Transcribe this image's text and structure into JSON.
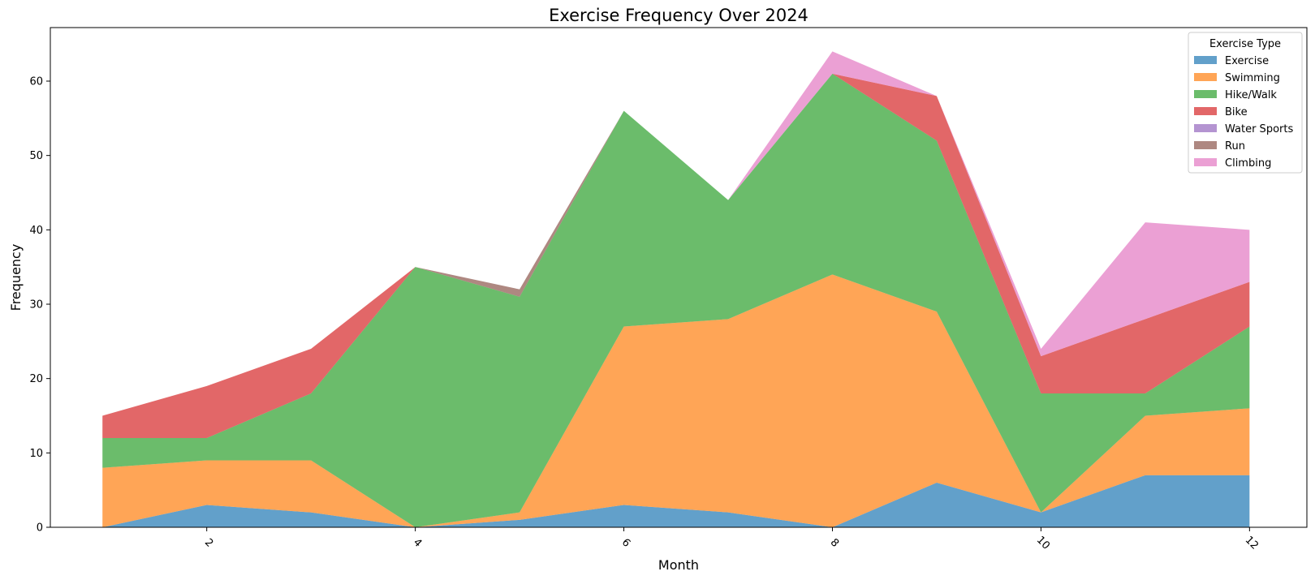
{
  "chart_data": {
    "type": "area",
    "stacked": true,
    "title": "Exercise Frequency Over 2024",
    "xlabel": "Month",
    "ylabel": "Frequency",
    "xlim": [
      0.5,
      12.55
    ],
    "ylim": [
      0,
      67.2
    ],
    "x_ticks": [
      2,
      4,
      6,
      8,
      10,
      12
    ],
    "y_ticks": [
      0,
      10,
      20,
      30,
      40,
      50,
      60
    ],
    "x_tick_rotation": 45,
    "grid": false,
    "legend": {
      "title": "Exercise Type",
      "placement": "top-right"
    },
    "x": [
      1,
      2,
      3,
      4,
      5,
      6,
      7,
      8,
      9,
      10,
      11,
      12
    ],
    "series": [
      {
        "name": "Exercise",
        "color": "#1f77b4",
        "values": [
          0,
          3,
          2,
          0,
          1,
          3,
          2,
          0,
          6,
          2,
          7,
          7
        ]
      },
      {
        "name": "Swimming",
        "color": "#ff7f0e",
        "values": [
          8,
          6,
          7,
          0,
          1,
          24,
          26,
          34,
          23,
          0,
          8,
          9
        ]
      },
      {
        "name": "Hike/Walk",
        "color": "#2ca02c",
        "values": [
          4,
          3,
          9,
          35,
          29,
          29,
          16,
          27,
          23,
          16,
          3,
          11
        ]
      },
      {
        "name": "Bike",
        "color": "#d62728",
        "values": [
          3,
          7,
          6,
          0,
          0,
          0,
          0,
          0,
          6,
          5,
          10,
          6
        ]
      },
      {
        "name": "Water Sports",
        "color": "#9467bd",
        "values": [
          0,
          0,
          0,
          0,
          0,
          0,
          0,
          0,
          0,
          0,
          0,
          0
        ]
      },
      {
        "name": "Run",
        "color": "#8c564b",
        "values": [
          0,
          0,
          0,
          0,
          1,
          0,
          0,
          0,
          0,
          0,
          0,
          0
        ]
      },
      {
        "name": "Climbing",
        "color": "#e377c2",
        "values": [
          0,
          0,
          0,
          0,
          0,
          0,
          0,
          3,
          0,
          1,
          13,
          7
        ]
      }
    ]
  }
}
